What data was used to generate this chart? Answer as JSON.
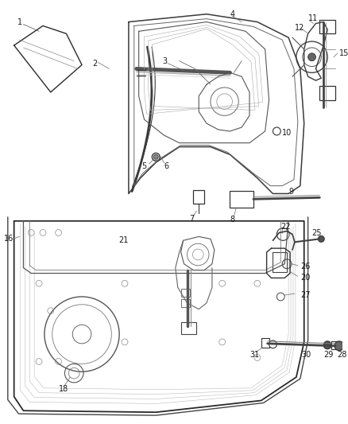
{
  "bg": "#f5f5f5",
  "fg": "#1a1a1a",
  "lc": "#2a2a2a",
  "fig_w": 4.39,
  "fig_h": 5.33,
  "dpi": 100,
  "fs": 7.0
}
